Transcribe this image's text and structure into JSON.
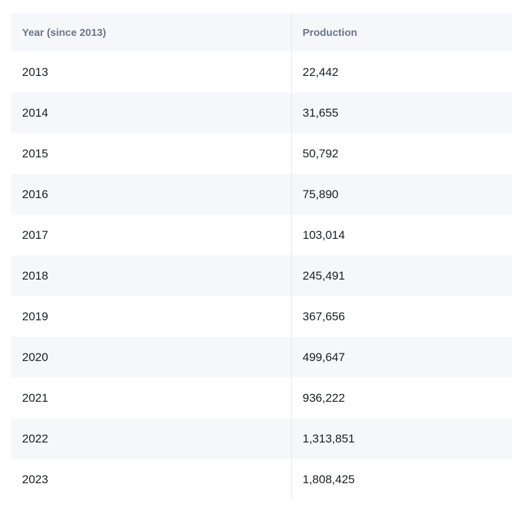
{
  "table": {
    "headers": [
      "Year (since 2013)",
      "Production"
    ],
    "rows": [
      [
        "2013",
        "22,442"
      ],
      [
        "2014",
        "31,655"
      ],
      [
        "2015",
        "50,792"
      ],
      [
        "2016",
        "75,890"
      ],
      [
        "2017",
        "103,014"
      ],
      [
        "2018",
        "245,491"
      ],
      [
        "2019",
        "367,656"
      ],
      [
        "2020",
        "499,647"
      ],
      [
        "2021",
        "936,222"
      ],
      [
        "2022",
        "1,313,851"
      ],
      [
        "2023",
        "1,808,425"
      ]
    ]
  },
  "colors": {
    "header_bg": "#f6f7fa",
    "header_text": "#6b7587",
    "stripe_bg": "#f6f7fa",
    "cell_text": "#1a1d21",
    "divider": "#e6e8ec"
  }
}
